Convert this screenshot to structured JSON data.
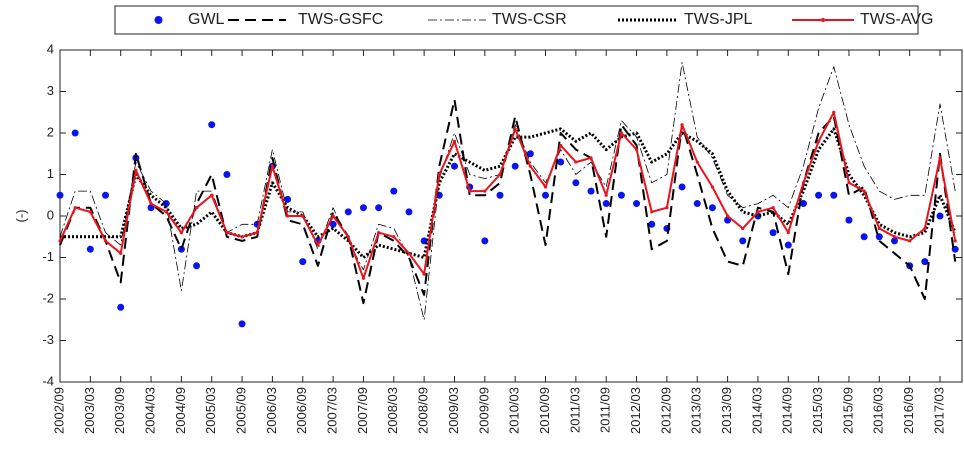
{
  "chart_data": {
    "type": "line",
    "ylabel": "(-)",
    "ylim": [
      -4,
      4
    ],
    "yticks": [
      -4,
      -3,
      -2,
      -1,
      0,
      1,
      2,
      3,
      4
    ],
    "grid": false,
    "legend": "top",
    "categories": [
      "2002/09",
      null,
      "2003/03",
      null,
      "2003/09",
      null,
      "2004/03",
      null,
      "2004/09",
      null,
      "2005/03",
      null,
      "2005/09",
      null,
      "2006/03",
      null,
      "2006/09",
      null,
      "2007/03",
      null,
      "2007/09",
      null,
      "2008/03",
      null,
      "2008/09",
      null,
      "2009/03",
      null,
      "2009/09",
      null,
      "2010/03",
      null,
      "2010/09",
      null,
      "2011/03",
      null,
      "2011/09",
      null,
      "2012/03",
      null,
      "2012/09",
      null,
      "2013/03",
      null,
      "2013/09",
      null,
      "2014/03",
      null,
      "2014/09",
      null,
      "2015/03",
      null,
      "2015/09",
      null,
      "2016/03",
      null,
      "2016/09",
      null,
      "2017/03",
      null
    ],
    "series": [
      {
        "name": "GWL",
        "color": "#0a14f0",
        "style": "markers",
        "values": [
          0.5,
          2.0,
          -0.8,
          0.5,
          -2.2,
          1.4,
          0.2,
          0.3,
          -0.8,
          -1.2,
          2.2,
          1.0,
          -2.6,
          -0.2,
          1.2,
          0.4,
          -1.1,
          -0.6,
          -0.2,
          0.1,
          0.2,
          0.2,
          0.6,
          0.1,
          -0.6,
          0.5,
          1.2,
          0.7,
          -0.6,
          0.5,
          1.2,
          1.5,
          0.5,
          1.3,
          0.8,
          0.6,
          0.3,
          0.5,
          0.3,
          -0.2,
          -0.3,
          0.7,
          0.3,
          0.2,
          -0.1,
          -0.6,
          0.0,
          -0.4,
          -0.7,
          0.3,
          0.5,
          0.5,
          -0.1,
          -0.5,
          -0.5,
          -0.6,
          -1.2,
          -1.1,
          0.0,
          -0.8
        ]
      },
      {
        "name": "TWS-GSFC",
        "color": "#000000",
        "style": "dashed",
        "values": [
          -0.7,
          0.2,
          0.2,
          -0.6,
          -1.6,
          1.5,
          0.3,
          0.0,
          -0.8,
          0.3,
          1.0,
          -0.5,
          -0.6,
          -0.5,
          1.4,
          -0.1,
          -0.2,
          -1.2,
          0.1,
          -0.5,
          -2.1,
          -0.4,
          -0.6,
          -1.0,
          -1.9,
          1.2,
          2.8,
          0.5,
          0.5,
          0.8,
          2.4,
          1.0,
          -0.7,
          2.0,
          1.6,
          1.4,
          -0.5,
          2.2,
          1.7,
          -0.8,
          -0.6,
          2.2,
          1.0,
          -0.3,
          -1.1,
          -1.2,
          0.2,
          0.1,
          -1.4,
          0.8,
          2.0,
          2.4,
          0.5,
          0.7,
          -0.6,
          -0.9,
          -1.2,
          -2.0,
          1.5,
          -1.1
        ]
      },
      {
        "name": "TWS-CSR",
        "color": "#000000",
        "style": "dash-dot",
        "values": [
          -0.5,
          0.6,
          0.6,
          -0.4,
          -0.7,
          1.3,
          0.6,
          0.3,
          -1.8,
          0.6,
          0.6,
          -0.4,
          -0.2,
          -0.2,
          1.6,
          0.1,
          0.1,
          -0.8,
          0.2,
          -0.6,
          -1.3,
          -0.2,
          -0.3,
          -1.0,
          -2.5,
          0.9,
          2.0,
          1.0,
          0.9,
          1.0,
          2.2,
          1.3,
          0.8,
          1.6,
          1.0,
          1.3,
          0.7,
          2.3,
          1.9,
          0.8,
          1.0,
          3.7,
          1.9,
          1.4,
          0.5,
          0.2,
          0.3,
          0.5,
          0.2,
          1.2,
          2.6,
          3.6,
          2.2,
          1.2,
          0.6,
          0.4,
          0.5,
          0.5,
          2.7,
          0.6
        ]
      },
      {
        "name": "TWS-JPL",
        "color": "#000000",
        "style": "dotted",
        "values": [
          -0.5,
          -0.5,
          -0.5,
          -0.5,
          -0.5,
          1.0,
          0.5,
          0.2,
          -0.3,
          -0.2,
          0.1,
          -0.4,
          -0.5,
          -0.4,
          0.8,
          0.2,
          0.0,
          -0.5,
          -0.3,
          -0.6,
          -1.0,
          -0.7,
          -0.8,
          -0.9,
          -1.0,
          0.8,
          1.5,
          1.3,
          1.1,
          1.2,
          1.9,
          1.9,
          2.0,
          2.1,
          1.8,
          2.0,
          1.6,
          1.9,
          2.0,
          1.3,
          1.5,
          2.0,
          1.8,
          1.5,
          0.6,
          0.1,
          0.0,
          0.1,
          -0.2,
          0.6,
          1.6,
          2.1,
          1.0,
          0.5,
          -0.2,
          -0.4,
          -0.5,
          -0.4,
          0.5,
          -0.4
        ]
      },
      {
        "name": "TWS-AVG",
        "color": "#e8141e",
        "style": "solid-dot",
        "values": [
          -0.6,
          0.2,
          0.1,
          -0.6,
          -0.9,
          1.1,
          0.3,
          0.1,
          -0.4,
          0.2,
          0.5,
          -0.4,
          -0.5,
          -0.4,
          1.2,
          0.0,
          0.0,
          -0.7,
          0.0,
          -0.5,
          -1.5,
          -0.4,
          -0.5,
          -0.9,
          -1.4,
          1.0,
          1.8,
          0.6,
          0.6,
          1.0,
          2.1,
          1.2,
          0.7,
          1.7,
          1.3,
          1.4,
          0.5,
          2.0,
          1.6,
          0.1,
          0.2,
          2.2,
          1.3,
          0.7,
          0.0,
          -0.3,
          0.1,
          0.2,
          -0.4,
          0.8,
          1.8,
          2.5,
          0.8,
          0.6,
          -0.3,
          -0.5,
          -0.6,
          -0.3,
          1.4,
          -0.6
        ]
      }
    ]
  }
}
